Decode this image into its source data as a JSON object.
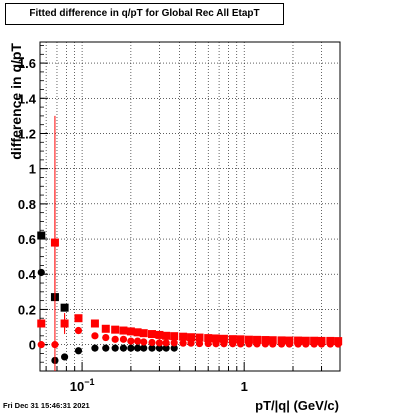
{
  "chart_data": {
    "type": "scatter",
    "title": "Fitted difference in q/pT for Global Rec All EtapT",
    "xlabel": "pT/|q| (GeV/c)",
    "ylabel": "difference in q/pT",
    "xscale": "log",
    "xlim": [
      0.055,
      3.9
    ],
    "ylim": [
      -0.15,
      1.72
    ],
    "yticks": [
      0,
      0.2,
      0.4,
      0.6,
      0.8,
      1,
      1.2,
      1.4,
      1.6
    ],
    "xticks": [
      {
        "value": 0.1,
        "label": "10",
        "sup": "−1"
      },
      {
        "value": 1,
        "label": "1",
        "sup": ""
      }
    ],
    "grid": true,
    "series": [
      {
        "marker": "square",
        "color": "#000000",
        "x": [
          0.056,
          0.068,
          0.078
        ],
        "y": [
          0.62,
          0.27,
          0.21
        ],
        "err": [
          0,
          0.02,
          0.02
        ]
      },
      {
        "marker": "circle",
        "color": "#000000",
        "x": [
          0.056,
          0.068,
          0.078,
          0.095,
          0.12,
          0.14,
          0.16,
          0.18,
          0.2,
          0.22,
          0.24,
          0.27,
          0.3,
          0.33,
          0.37
        ],
        "y": [
          0.41,
          -0.09,
          -0.07,
          -0.035,
          -0.02,
          -0.02,
          -0.02,
          -0.02,
          -0.02,
          -0.02,
          -0.02,
          -0.02,
          -0.02,
          -0.02,
          -0.02
        ],
        "err": [
          0,
          0,
          0,
          0,
          0,
          0,
          0,
          0,
          0,
          0,
          0,
          0,
          0,
          0,
          0
        ]
      },
      {
        "marker": "square",
        "color": "#ff0000",
        "x": [
          0.056,
          0.068,
          0.078,
          0.095,
          0.12,
          0.14,
          0.16,
          0.18,
          0.2,
          0.22,
          0.24,
          0.27,
          0.3,
          0.33,
          0.37,
          0.42,
          0.47,
          0.53,
          0.6,
          0.67,
          0.75,
          0.85,
          0.95,
          1.07,
          1.2,
          1.35,
          1.5,
          1.7,
          1.9,
          2.15,
          2.4,
          2.7,
          3.0,
          3.4,
          3.8
        ],
        "y": [
          0.12,
          0.58,
          0.12,
          0.15,
          0.12,
          0.09,
          0.085,
          0.08,
          0.075,
          0.07,
          0.065,
          0.06,
          0.055,
          0.05,
          0.048,
          0.045,
          0.042,
          0.04,
          0.037,
          0.035,
          0.033,
          0.031,
          0.03,
          0.028,
          0.027,
          0.026,
          0.025,
          0.024,
          0.023,
          0.023,
          0.022,
          0.022,
          0.021,
          0.021,
          0.02
        ],
        "err": [
          0,
          0.3,
          0.05,
          0.02,
          0.01,
          0.01,
          0.01,
          0.01,
          0,
          0,
          0,
          0,
          0,
          0,
          0,
          0,
          0,
          0,
          0,
          0,
          0,
          0,
          0,
          0,
          0,
          0,
          0,
          0,
          0,
          0,
          0,
          0,
          0,
          0,
          0
        ]
      },
      {
        "marker": "circle",
        "color": "#ff0000",
        "x": [
          0.056,
          0.068,
          0.078,
          0.095,
          0.12,
          0.14,
          0.16,
          0.18,
          0.2,
          0.22,
          0.24,
          0.27,
          0.3,
          0.33,
          0.37,
          0.42,
          0.47,
          0.53,
          0.6,
          0.67,
          0.75,
          0.85,
          0.95,
          1.07,
          1.2,
          1.35,
          1.5,
          1.7,
          1.9,
          2.15,
          2.4,
          2.7,
          3.0,
          3.4,
          3.8
        ],
        "y": [
          0.0,
          0.0,
          0.12,
          0.08,
          0.05,
          0.04,
          0.03,
          0.03,
          0.02,
          0.02,
          0.015,
          0.012,
          0.01,
          0.01,
          0.01,
          0.008,
          0.008,
          0.006,
          0.006,
          0.005,
          0.005,
          0.005,
          0.004,
          0.004,
          0.004,
          0.004,
          0.003,
          0.003,
          0.003,
          0.003,
          0.003,
          0.003,
          0.003,
          0.003,
          0.003
        ],
        "err": [
          0,
          1.3,
          0.06,
          0.02,
          0,
          0,
          0,
          0,
          0,
          0,
          0,
          0,
          0,
          0,
          0,
          0,
          0,
          0,
          0,
          0,
          0,
          0,
          0,
          0,
          0,
          0,
          0,
          0,
          0,
          0,
          0,
          0,
          0,
          0,
          0
        ]
      }
    ]
  },
  "footer": {
    "timestamp": "Fri Dec 31 15:46:31 2021"
  }
}
